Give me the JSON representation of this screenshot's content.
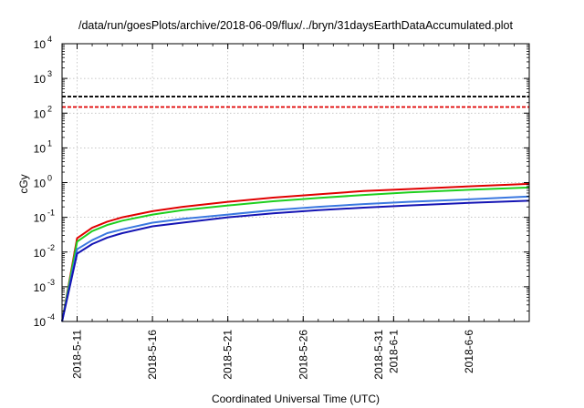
{
  "chart_data": {
    "type": "line",
    "title": "/data/run/goesPlots/archive/2018-06-09/flux/../bryn/31daysEarthDataAccumulated.plot",
    "xlabel": "Coordinated Universal Time (UTC)",
    "ylabel": "cGy",
    "yscale": "log",
    "ylim": [
      0.0001,
      10000
    ],
    "xlim": [
      "2018-05-10",
      "2018-06-10"
    ],
    "grid": true,
    "y_ticks": [
      {
        "base": "10",
        "exp": "-4",
        "value": 0.0001
      },
      {
        "base": "10",
        "exp": "-3",
        "value": 0.001
      },
      {
        "base": "10",
        "exp": "-2",
        "value": 0.01
      },
      {
        "base": "10",
        "exp": "-1",
        "value": 0.1
      },
      {
        "base": "10",
        "exp": "0",
        "value": 1
      },
      {
        "base": "10",
        "exp": "1",
        "value": 10
      },
      {
        "base": "10",
        "exp": "2",
        "value": 100
      },
      {
        "base": "10",
        "exp": "3",
        "value": 1000
      },
      {
        "base": "10",
        "exp": "4",
        "value": 10000
      }
    ],
    "x_ticks": [
      {
        "label": "2018-5-11",
        "date": "2018-05-11"
      },
      {
        "label": "2018-5-16",
        "date": "2018-05-16"
      },
      {
        "label": "2018-5-21",
        "date": "2018-05-21"
      },
      {
        "label": "2018-5-26",
        "date": "2018-05-26"
      },
      {
        "label": "2018-5-31",
        "date": "2018-05-31"
      },
      {
        "label": "2018-6-1",
        "date": "2018-06-01"
      },
      {
        "label": "2018-6-6",
        "date": "2018-06-06"
      }
    ],
    "thresholds": [
      {
        "value": 300,
        "color": "#000000",
        "style": "dashed"
      },
      {
        "value": 150,
        "color": "#e00000",
        "style": "dashed"
      }
    ],
    "series": [
      {
        "color": "#e00000",
        "x": [
          "2018-05-10",
          "2018-05-11",
          "2018-05-12",
          "2018-05-13",
          "2018-05-14",
          "2018-05-16",
          "2018-05-18",
          "2018-05-21",
          "2018-05-24",
          "2018-05-27",
          "2018-05-30",
          "2018-06-02",
          "2018-06-06",
          "2018-06-10"
        ],
        "y": [
          0.0001,
          0.025,
          0.05,
          0.075,
          0.1,
          0.15,
          0.2,
          0.28,
          0.37,
          0.46,
          0.57,
          0.65,
          0.78,
          0.92
        ]
      },
      {
        "color": "#1ecf1e",
        "x": [
          "2018-05-10",
          "2018-05-11",
          "2018-05-12",
          "2018-05-13",
          "2018-05-14",
          "2018-05-16",
          "2018-05-18",
          "2018-05-21",
          "2018-05-24",
          "2018-05-27",
          "2018-05-30",
          "2018-06-02",
          "2018-06-06",
          "2018-06-10"
        ],
        "y": [
          0.0001,
          0.02,
          0.04,
          0.06,
          0.08,
          0.12,
          0.16,
          0.22,
          0.29,
          0.36,
          0.44,
          0.52,
          0.62,
          0.72
        ]
      },
      {
        "color": "#3a78e0",
        "x": [
          "2018-05-10",
          "2018-05-11",
          "2018-05-12",
          "2018-05-13",
          "2018-05-14",
          "2018-05-16",
          "2018-05-18",
          "2018-05-21",
          "2018-05-24",
          "2018-05-27",
          "2018-05-30",
          "2018-06-02",
          "2018-06-06",
          "2018-06-10"
        ],
        "y": [
          0.0001,
          0.012,
          0.022,
          0.035,
          0.045,
          0.07,
          0.09,
          0.12,
          0.16,
          0.2,
          0.24,
          0.28,
          0.33,
          0.4
        ]
      },
      {
        "color": "#1414b4",
        "x": [
          "2018-05-10",
          "2018-05-11",
          "2018-05-12",
          "2018-05-13",
          "2018-05-14",
          "2018-05-16",
          "2018-05-18",
          "2018-05-21",
          "2018-05-24",
          "2018-05-27",
          "2018-05-30",
          "2018-06-02",
          "2018-06-06",
          "2018-06-10"
        ],
        "y": [
          0.0001,
          0.009,
          0.017,
          0.026,
          0.035,
          0.055,
          0.07,
          0.1,
          0.13,
          0.16,
          0.19,
          0.22,
          0.26,
          0.3
        ]
      }
    ]
  }
}
